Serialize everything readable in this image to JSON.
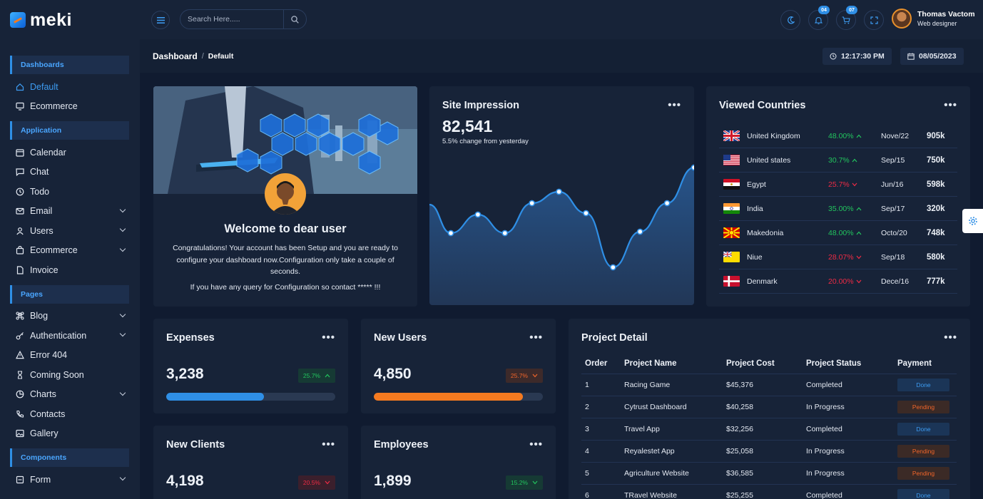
{
  "brand": {
    "name": "meki"
  },
  "sidebar": {
    "sections": [
      {
        "title": "Dashboards",
        "items": [
          {
            "label": "Default",
            "icon": "home-icon",
            "active": true,
            "chevron": false
          },
          {
            "label": "Ecommerce",
            "icon": "monitor-icon",
            "active": false,
            "chevron": false
          }
        ]
      },
      {
        "title": "Application",
        "items": [
          {
            "label": "Calendar",
            "icon": "calendar-icon",
            "chevron": false
          },
          {
            "label": "Chat",
            "icon": "chat-icon",
            "chevron": false
          },
          {
            "label": "Todo",
            "icon": "clock-icon",
            "chevron": false
          },
          {
            "label": "Email",
            "icon": "mail-icon",
            "chevron": true
          },
          {
            "label": "Users",
            "icon": "user-icon",
            "chevron": true
          },
          {
            "label": "Ecommerce",
            "icon": "bag-icon",
            "chevron": true
          },
          {
            "label": "Invoice",
            "icon": "file-icon",
            "chevron": false
          }
        ]
      },
      {
        "title": "Pages",
        "items": [
          {
            "label": "Blog",
            "icon": "command-icon",
            "chevron": true
          },
          {
            "label": "Authentication",
            "icon": "key-icon",
            "chevron": true
          },
          {
            "label": "Error 404",
            "icon": "warning-icon",
            "chevron": false
          },
          {
            "label": "Coming Soon",
            "icon": "hourglass-icon",
            "chevron": false
          },
          {
            "label": "Charts",
            "icon": "pie-chart-icon",
            "chevron": true
          },
          {
            "label": "Contacts",
            "icon": "phone-icon",
            "chevron": false
          },
          {
            "label": "Gallery",
            "icon": "image-icon",
            "chevron": false
          }
        ]
      },
      {
        "title": "Components",
        "items": [
          {
            "label": "Form",
            "icon": "form-icon",
            "chevron": true
          }
        ]
      }
    ]
  },
  "header": {
    "search_placeholder": "Search Here.....",
    "notifications_count": "04",
    "cart_count": "07",
    "user_name": "Thomas Vactom",
    "user_role": "Web designer"
  },
  "breadcrumb": {
    "root": "Dashboard",
    "current": "Default",
    "time": "12:17:30 PM",
    "date": "08/05/2023"
  },
  "welcome": {
    "title": "Welcome to dear user",
    "text": "Congratulations! Your account has been Setup and you are ready to configure your dashboard now.Configuration only take a couple of seconds.",
    "query": "If you have any query for Configuration so contact ***** !!!"
  },
  "impression": {
    "title": "Site Impression",
    "value": "82,541",
    "note": "5.5% change from yesterday",
    "chart_data": {
      "type": "area",
      "title": "",
      "values": [
        0.42,
        0.55,
        0.42,
        0.63,
        0.71,
        0.56,
        0.18,
        0.43,
        0.63,
        0.88
      ],
      "grid": false,
      "legend": "none"
    }
  },
  "countries": {
    "title": "Viewed Countries",
    "rows": [
      {
        "name": "United Kingdom",
        "pct": "48.00%",
        "dir": "up",
        "date": "Nove/22",
        "value": "905k",
        "flag": "uk"
      },
      {
        "name": "United states",
        "pct": "30.7%",
        "dir": "up",
        "date": "Sep/15",
        "value": "750k",
        "flag": "us"
      },
      {
        "name": "Egypt",
        "pct": "25.7%",
        "dir": "down",
        "date": "Jun/16",
        "value": "598k",
        "flag": "eg"
      },
      {
        "name": "India",
        "pct": "35.00%",
        "dir": "up",
        "date": "Sep/17",
        "value": "320k",
        "flag": "in"
      },
      {
        "name": "Makedonia",
        "pct": "48.00%",
        "dir": "up",
        "date": "Octo/20",
        "value": "748k",
        "flag": "mk"
      },
      {
        "name": "Niue",
        "pct": "28.07%",
        "dir": "down",
        "date": "Sep/18",
        "value": "580k",
        "flag": "nu"
      },
      {
        "name": "Denmark",
        "pct": "20.00%",
        "dir": "down",
        "date": "Dece/16",
        "value": "777k",
        "flag": "dk"
      }
    ]
  },
  "stats": [
    {
      "title": "Expenses",
      "value": "3,238",
      "pct": "25.7%",
      "dir": "up",
      "badge": "up",
      "progress": 0.58,
      "color": "#2f8fe6"
    },
    {
      "title": "New Users",
      "value": "4,850",
      "pct": "25.7%",
      "dir": "down",
      "badge": "orange",
      "progress": 0.88,
      "color": "#f47a20"
    },
    {
      "title": "New Clients",
      "value": "4,198",
      "pct": "20.5%",
      "dir": "down",
      "badge": "red"
    },
    {
      "title": "Employees",
      "value": "1,899",
      "pct": "15.2%",
      "dir": "down",
      "badge": "up"
    }
  ],
  "projects": {
    "title": "Project Detail",
    "columns": [
      "Order",
      "Project Name",
      "Project Cost",
      "Project Status",
      "Payment"
    ],
    "rows": [
      {
        "order": "1",
        "name": "Racing Game",
        "cost": "$45,376",
        "status": "Completed",
        "payment": "Done"
      },
      {
        "order": "2",
        "name": "Cytrust Dashboard",
        "cost": "$40,258",
        "status": "In Progress",
        "payment": "Pending"
      },
      {
        "order": "3",
        "name": "Travel App",
        "cost": "$32,256",
        "status": "Completed",
        "payment": "Done"
      },
      {
        "order": "4",
        "name": "Reyalestet App",
        "cost": "$25,058",
        "status": "In Progress",
        "payment": "Pending"
      },
      {
        "order": "5",
        "name": "Agriculture Website",
        "cost": "$36,585",
        "status": "In Progress",
        "payment": "Pending"
      },
      {
        "order": "6",
        "name": "TRavel Website",
        "cost": "$25,255",
        "status": "Completed",
        "payment": "Done"
      }
    ]
  }
}
